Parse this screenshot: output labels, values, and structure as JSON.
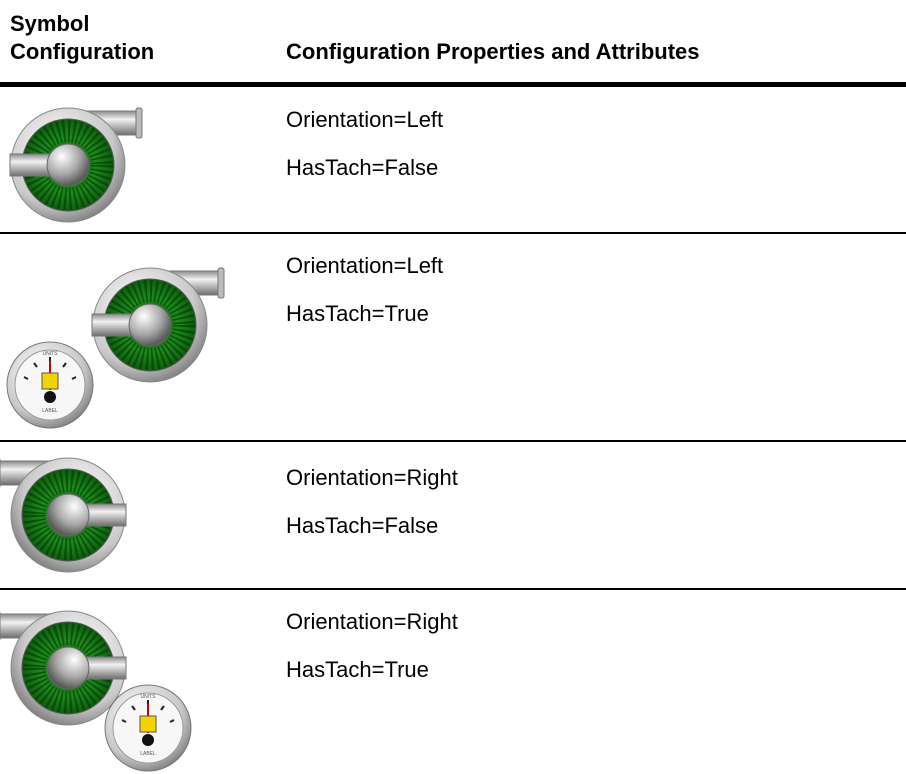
{
  "header": {
    "col1": "Symbol Configuration",
    "col2": "Configuration Properties and Attributes"
  },
  "rows": [
    {
      "lines": [
        "Orientation=Left",
        "HasTach=False"
      ]
    },
    {
      "lines": [
        "Orientation=Left",
        "HasTach=True"
      ]
    },
    {
      "lines": [
        "Orientation=Right",
        "HasTach=False"
      ]
    },
    {
      "lines": [
        "Orientation=Right",
        "HasTach=True"
      ]
    }
  ],
  "gauge": {
    "units": "UNITS",
    "label": "LABEL"
  }
}
